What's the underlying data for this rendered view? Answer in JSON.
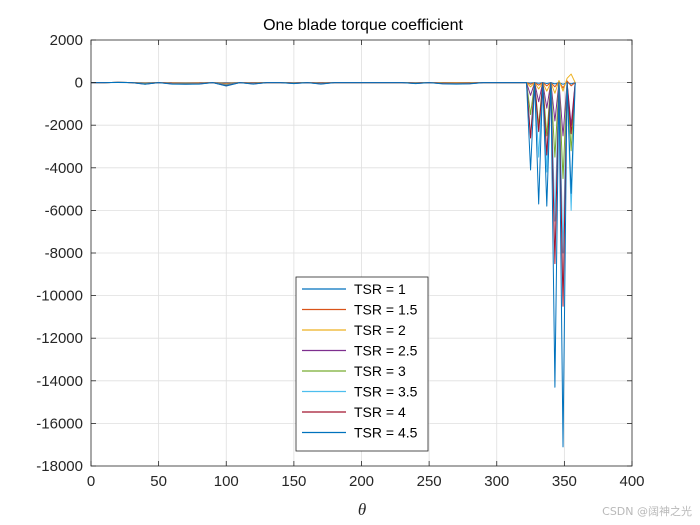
{
  "watermark": "CSDN @阔神之光",
  "chart_data": {
    "type": "line",
    "title": "One blade torque coefficient",
    "xlabel": "θ",
    "ylabel": "",
    "xlim": [
      0,
      400
    ],
    "ylim": [
      -18000,
      2000
    ],
    "xticks": [
      0,
      50,
      100,
      150,
      200,
      250,
      300,
      350,
      400
    ],
    "yticks": [
      2000,
      0,
      -2000,
      -4000,
      -6000,
      -8000,
      -10000,
      -12000,
      -14000,
      -16000,
      -18000
    ],
    "grid": true,
    "legend_position": "lower-center",
    "x": [
      0,
      10,
      20,
      30,
      40,
      50,
      60,
      70,
      80,
      90,
      100,
      110,
      120,
      130,
      140,
      150,
      160,
      170,
      180,
      190,
      200,
      210,
      220,
      230,
      240,
      250,
      260,
      270,
      280,
      290,
      300,
      310,
      320,
      322,
      325,
      328,
      331,
      334,
      337,
      340,
      343,
      346,
      349,
      352,
      355,
      358
    ],
    "series": [
      {
        "name": "TSR = 1",
        "color": "#0072bd",
        "values": [
          0,
          0,
          5,
          0,
          -10,
          0,
          -5,
          -10,
          -5,
          0,
          -5,
          0,
          0,
          0,
          0,
          0,
          0,
          0,
          0,
          0,
          0,
          0,
          0,
          0,
          0,
          0,
          0,
          0,
          0,
          0,
          0,
          0,
          0,
          0,
          -20,
          0,
          -30,
          0,
          -40,
          0,
          -60,
          0,
          -80,
          0,
          -60,
          0
        ]
      },
      {
        "name": "TSR = 1.5",
        "color": "#d95319",
        "values": [
          0,
          0,
          10,
          0,
          -20,
          0,
          -10,
          -20,
          -10,
          0,
          -30,
          0,
          -10,
          0,
          0,
          0,
          0,
          -10,
          0,
          0,
          0,
          0,
          0,
          0,
          0,
          0,
          0,
          0,
          0,
          0,
          0,
          0,
          0,
          0,
          -80,
          0,
          -120,
          0,
          -150,
          0,
          -200,
          50,
          -250,
          80,
          -150,
          0
        ]
      },
      {
        "name": "TSR = 2",
        "color": "#edb120",
        "values": [
          0,
          0,
          10,
          0,
          -30,
          0,
          -20,
          -30,
          -20,
          0,
          -50,
          0,
          -20,
          0,
          0,
          0,
          0,
          -20,
          0,
          0,
          0,
          0,
          0,
          0,
          0,
          0,
          0,
          0,
          0,
          0,
          0,
          0,
          0,
          0,
          -200,
          0,
          -300,
          0,
          -400,
          0,
          -500,
          100,
          -400,
          200,
          400,
          0
        ]
      },
      {
        "name": "TSR = 2.5",
        "color": "#7e2f8e",
        "values": [
          0,
          0,
          10,
          0,
          -40,
          0,
          -30,
          -40,
          -30,
          0,
          -80,
          0,
          -30,
          0,
          0,
          -10,
          0,
          -30,
          0,
          0,
          0,
          0,
          0,
          0,
          -10,
          0,
          -20,
          -30,
          -20,
          0,
          0,
          0,
          0,
          0,
          -600,
          0,
          -900,
          0,
          -1200,
          0,
          -1800,
          0,
          -2500,
          0,
          -2000,
          0
        ]
      },
      {
        "name": "TSR = 3",
        "color": "#77ac30",
        "values": [
          0,
          0,
          10,
          0,
          -50,
          0,
          -40,
          -50,
          -40,
          0,
          -100,
          0,
          -40,
          0,
          0,
          -20,
          0,
          -40,
          0,
          0,
          0,
          0,
          0,
          0,
          -20,
          0,
          -30,
          -40,
          -30,
          0,
          0,
          0,
          0,
          0,
          -1500,
          0,
          -2000,
          0,
          -2500,
          0,
          -3500,
          0,
          -4500,
          0,
          -3200,
          0
        ]
      },
      {
        "name": "TSR = 3.5",
        "color": "#4dbeee",
        "values": [
          0,
          0,
          10,
          0,
          -60,
          0,
          -50,
          -60,
          -50,
          0,
          -120,
          0,
          -50,
          0,
          0,
          -30,
          0,
          -50,
          0,
          0,
          0,
          0,
          0,
          0,
          -30,
          0,
          -40,
          -50,
          -40,
          0,
          0,
          0,
          0,
          0,
          -2500,
          0,
          -3500,
          0,
          -4200,
          0,
          -6500,
          0,
          -8000,
          0,
          -6000,
          0
        ]
      },
      {
        "name": "TSR = 4",
        "color": "#a2142f",
        "values": [
          0,
          0,
          10,
          0,
          -70,
          0,
          -60,
          -70,
          -60,
          0,
          -140,
          0,
          -60,
          0,
          0,
          -40,
          0,
          -60,
          0,
          0,
          0,
          0,
          0,
          0,
          -40,
          0,
          -50,
          -60,
          -50,
          0,
          0,
          0,
          0,
          0,
          -2600,
          0,
          -2300,
          0,
          -3400,
          0,
          -8500,
          0,
          -10500,
          0,
          -2400,
          0
        ]
      },
      {
        "name": "TSR = 4.5",
        "color": "#0072bd",
        "values": [
          0,
          0,
          10,
          0,
          -80,
          0,
          -70,
          -80,
          -70,
          0,
          -160,
          0,
          -70,
          0,
          0,
          -50,
          0,
          -70,
          0,
          0,
          0,
          0,
          0,
          0,
          -50,
          0,
          -60,
          -70,
          -60,
          0,
          0,
          0,
          0,
          0,
          -4100,
          0,
          -5700,
          0,
          -5800,
          0,
          -14300,
          0,
          -17100,
          0,
          -5200,
          0
        ]
      }
    ]
  }
}
